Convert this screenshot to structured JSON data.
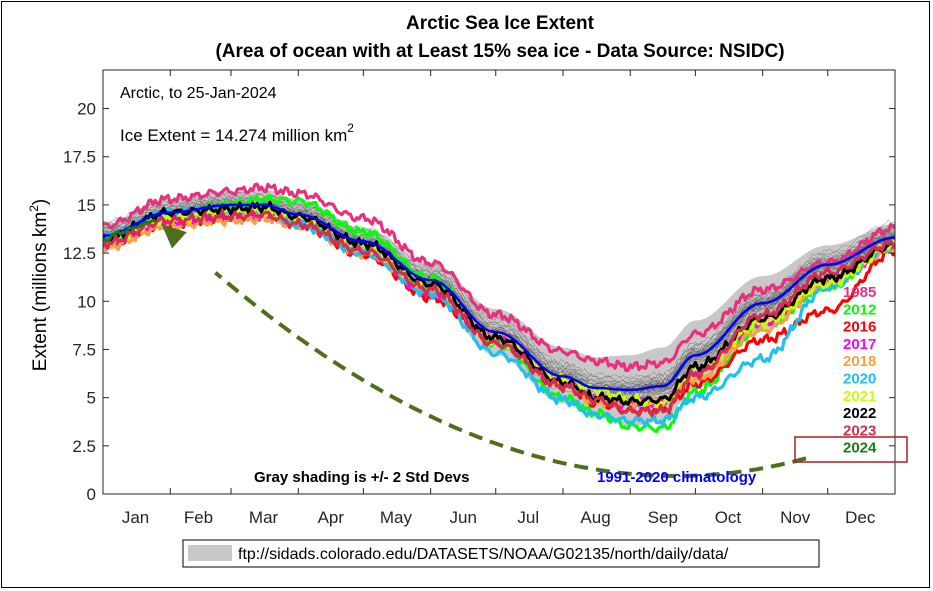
{
  "chart_data": {
    "type": "line",
    "title_line1": "Arctic Sea Ice Extent",
    "title_line2": "(Area of ocean with at Least 15% sea ice - Data Source:  NSIDC)",
    "ylabel": "Extent (millions km",
    "ylabel_sup": "2",
    "ylabel_close": ")",
    "xlabel": "",
    "ylim": [
      0,
      22
    ],
    "yticks": [
      0,
      2.5,
      5,
      7.5,
      10,
      12.5,
      15,
      17.5,
      20
    ],
    "ytick_labels": [
      "0",
      "2.5",
      "5",
      "7.5",
      "10",
      "12.5",
      "15",
      "17.5",
      "20"
    ],
    "xlim": [
      1,
      366
    ],
    "x_month_labels": [
      "Jan",
      "Feb",
      "Mar",
      "Apr",
      "May",
      "Jun",
      "Jul",
      "Aug",
      "Sep",
      "Oct",
      "Nov",
      "Dec"
    ],
    "x_month_mid_day": [
      16,
      45,
      75,
      106,
      136,
      167,
      197,
      228,
      259,
      289,
      320,
      350
    ],
    "x_month_start_day": [
      1,
      32,
      60,
      91,
      121,
      152,
      182,
      213,
      244,
      274,
      305,
      335,
      366
    ],
    "grid": false,
    "annotation_arctic": "Arctic, to 25-Jan-2024",
    "annotation_extent": "Ice Extent = 14.274 million km",
    "annotation_extent_sup": "2",
    "annotation_shading": "Gray shading is +/- 2 Std Devs",
    "annotation_climatology": "1991-2020 climatology",
    "source_url": "ftp://sidads.colorado.edu/DATASETS/NOAA/G02135/north/daily/data/",
    "legend_placement": "right",
    "climatology": {
      "name": "1991-2020 climatology",
      "color": "#0000ff",
      "x": [
        1,
        31,
        60,
        75,
        91,
        121,
        152,
        182,
        213,
        228,
        244,
        259,
        274,
        305,
        335,
        366
      ],
      "y": [
        13.4,
        14.6,
        15.0,
        15.0,
        14.5,
        13.1,
        11.1,
        8.4,
        6.1,
        5.5,
        5.4,
        5.6,
        7.2,
        9.9,
        11.9,
        13.3
      ]
    },
    "std_band": {
      "color": "#c8c8c8",
      "x": [
        1,
        31,
        60,
        75,
        91,
        121,
        152,
        182,
        213,
        228,
        244,
        259,
        274,
        305,
        335,
        366
      ],
      "upper": [
        14.0,
        15.3,
        15.7,
        15.8,
        15.3,
        13.8,
        12.0,
        9.6,
        7.6,
        7.1,
        7.2,
        7.6,
        9.0,
        11.3,
        12.9,
        14.0
      ],
      "lower": [
        12.8,
        13.9,
        14.3,
        14.3,
        13.8,
        12.3,
        10.1,
        7.2,
        4.7,
        4.0,
        3.5,
        3.8,
        5.5,
        8.4,
        10.9,
        12.6
      ]
    },
    "series": [
      {
        "name": "1985",
        "color": "#e8317e",
        "x": [
          1,
          31,
          60,
          75,
          91,
          121,
          152,
          182,
          213,
          228,
          244,
          259,
          274,
          305,
          335,
          366
        ],
        "y": [
          13.9,
          15.3,
          15.7,
          15.9,
          15.6,
          14.3,
          12.0,
          9.3,
          7.4,
          6.9,
          6.6,
          6.8,
          8.3,
          10.6,
          12.0,
          13.8
        ]
      },
      {
        "name": "2012",
        "color": "#00ff00",
        "x": [
          1,
          31,
          60,
          75,
          91,
          121,
          152,
          182,
          213,
          228,
          244,
          259,
          274,
          305,
          335,
          366
        ],
        "y": [
          13.2,
          14.5,
          15.0,
          15.3,
          15.2,
          13.6,
          11.2,
          7.8,
          5.0,
          4.2,
          3.5,
          3.4,
          5.3,
          8.7,
          10.8,
          12.9
        ]
      },
      {
        "name": "2016",
        "color": "#ff0000",
        "x": [
          1,
          31,
          60,
          75,
          91,
          121,
          152,
          182,
          213,
          228,
          244,
          259,
          274,
          305,
          335,
          366
        ],
        "y": [
          12.9,
          14.0,
          14.4,
          14.5,
          14.0,
          12.4,
          10.2,
          7.8,
          5.6,
          4.7,
          4.3,
          4.4,
          5.7,
          8.0,
          9.5,
          12.6
        ]
      },
      {
        "name": "2017",
        "color": "#ff00ff",
        "x": [
          1,
          31,
          60,
          75,
          91,
          121,
          152,
          182,
          213,
          228,
          244,
          259,
          274,
          305,
          335,
          366
        ],
        "y": [
          12.9,
          14.1,
          14.3,
          14.4,
          14.0,
          12.6,
          10.4,
          8.1,
          5.8,
          5.0,
          4.7,
          4.8,
          6.4,
          8.9,
          11.0,
          12.8
        ]
      },
      {
        "name": "2018",
        "color": "#f7a13a",
        "x": [
          1,
          31,
          60,
          75,
          91,
          121,
          152,
          182,
          213,
          228,
          244,
          259,
          274,
          305,
          335,
          366
        ],
        "y": [
          12.8,
          13.9,
          14.2,
          14.3,
          13.9,
          12.5,
          10.5,
          8.3,
          5.7,
          4.8,
          4.7,
          4.8,
          6.0,
          8.5,
          10.9,
          12.7
        ]
      },
      {
        "name": "2020",
        "color": "#1ec0f0",
        "x": [
          1,
          31,
          60,
          75,
          91,
          121,
          152,
          182,
          213,
          228,
          244,
          259,
          274,
          305,
          335,
          366
        ],
        "y": [
          13.3,
          14.6,
          14.7,
          14.8,
          14.0,
          12.5,
          10.4,
          7.3,
          4.9,
          4.1,
          3.8,
          3.8,
          5.0,
          7.0,
          10.7,
          12.9
        ]
      },
      {
        "name": "2021",
        "color": "#c8ff00",
        "x": [
          1,
          31,
          60,
          75,
          91,
          121,
          152,
          182,
          213,
          228,
          244,
          259,
          274,
          305,
          335,
          366
        ],
        "y": [
          13.1,
          14.3,
          14.6,
          14.7,
          14.3,
          12.8,
          10.8,
          8.0,
          6.0,
          5.4,
          4.9,
          4.7,
          6.4,
          8.9,
          10.9,
          12.9
        ]
      },
      {
        "name": "2022",
        "color": "#000000",
        "x": [
          1,
          31,
          60,
          75,
          91,
          121,
          152,
          182,
          213,
          228,
          244,
          259,
          274,
          305,
          335,
          366
        ],
        "y": [
          13.2,
          14.6,
          14.8,
          14.9,
          14.4,
          13.0,
          10.9,
          8.1,
          5.8,
          5.0,
          4.8,
          4.9,
          6.6,
          9.1,
          11.2,
          12.9
        ]
      },
      {
        "name": "2023",
        "color": "#d42d4f",
        "x": [
          1,
          31,
          60,
          75,
          91,
          121,
          152,
          182,
          213,
          228,
          244,
          259,
          274,
          305,
          335,
          366
        ],
        "y": [
          13.0,
          14.2,
          14.4,
          14.5,
          14.0,
          12.6,
          10.6,
          7.8,
          5.6,
          4.9,
          4.3,
          4.3,
          6.2,
          9.3,
          11.5,
          13.0
        ]
      },
      {
        "name": "2024",
        "color": "#1a7a1a",
        "x": [
          1,
          10,
          20,
          25
        ],
        "y": [
          13.2,
          13.6,
          14.0,
          14.274
        ]
      }
    ],
    "arrow": {
      "color": "#4f6f1f",
      "from": [
        325,
        1.85
      ],
      "via": [
        180,
        2.7
      ],
      "to": [
        28,
        14.0
      ]
    }
  }
}
